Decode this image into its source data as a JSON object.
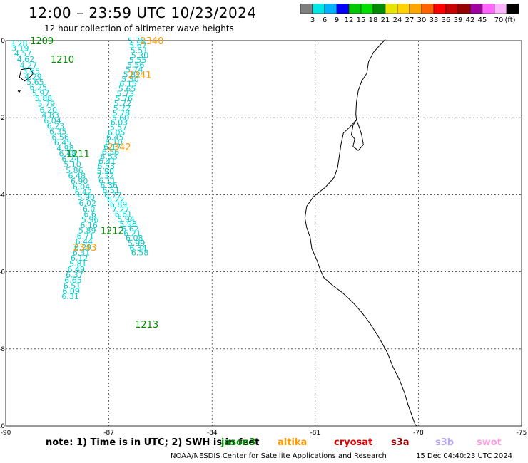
{
  "header": {
    "title": "12:00 – 23:59 UTC 10/23/2024",
    "subtitle": "12 hour collection of altimeter wave heights"
  },
  "colorbar": {
    "colors": [
      "#7f7f7f",
      "#00e5e5",
      "#00b2ff",
      "#0000ff",
      "#00c800",
      "#00e000",
      "#008c00",
      "#e5e500",
      "#ffd200",
      "#ffa500",
      "#ff6400",
      "#ff0000",
      "#c80000",
      "#960000",
      "#a000a0",
      "#ff64ff",
      "#ffb4ff",
      "#000000"
    ],
    "labels": [
      "3",
      "6",
      "9",
      "12",
      "15",
      "18",
      "21",
      "24",
      "27",
      "30",
      "33",
      "36",
      "39",
      "42",
      "45",
      "70"
    ],
    "unit": "(ft)"
  },
  "footer": {
    "note": "note:  1) Time is in UTC; 2) SWH is in feet",
    "credit": "NOAA/NESDIS Center for Satellite Applications and Research",
    "date": "15 Dec 04:40:23 UTC 2024"
  },
  "legend": [
    {
      "name": "jason3",
      "color": "#008c00"
    },
    {
      "name": "altika",
      "color": "#ff9900"
    },
    {
      "name": "cryosat",
      "color": "#e00000"
    },
    {
      "name": "s3a",
      "color": "#a00000"
    },
    {
      "name": "s3b",
      "color": "#b8a8f0"
    },
    {
      "name": "swot",
      "color": "#ff9ee0"
    }
  ],
  "chart_data": {
    "type": "scatter",
    "xlim": [
      -90,
      -75
    ],
    "ylim": [
      -10,
      0
    ],
    "x_ticks": [
      "-90",
      "-87",
      "-84",
      "-81",
      "-78",
      "-75"
    ],
    "y_ticks": [
      "0",
      "-2",
      "-4",
      "-6",
      "-8",
      "-10"
    ],
    "grid": true,
    "value_color": "#00cccc",
    "coastline": [
      [
        -78.96,
        0.03
      ],
      [
        -79.1,
        -0.1
      ],
      [
        -79.3,
        -0.3
      ],
      [
        -79.45,
        -0.55
      ],
      [
        -79.5,
        -0.85
      ],
      [
        -79.65,
        -1.05
      ],
      [
        -79.75,
        -1.3
      ],
      [
        -79.8,
        -1.6
      ],
      [
        -79.82,
        -1.9
      ],
      [
        -79.8,
        -2.05
      ],
      [
        -80.0,
        -2.25
      ],
      [
        -80.18,
        -2.4
      ],
      [
        -80.25,
        -2.7
      ],
      [
        -80.3,
        -3.0
      ],
      [
        -80.35,
        -3.3
      ],
      [
        -80.45,
        -3.55
      ],
      [
        -80.7,
        -3.8
      ],
      [
        -81.05,
        -4.05
      ],
      [
        -81.25,
        -4.3
      ],
      [
        -81.3,
        -4.6
      ],
      [
        -81.25,
        -4.85
      ],
      [
        -81.15,
        -5.1
      ],
      [
        -81.1,
        -5.4
      ],
      [
        -80.95,
        -5.7
      ],
      [
        -80.85,
        -5.95
      ],
      [
        -80.75,
        -6.15
      ],
      [
        -80.5,
        -6.35
      ],
      [
        -80.2,
        -6.55
      ],
      [
        -79.9,
        -6.8
      ],
      [
        -79.65,
        -7.05
      ],
      [
        -79.4,
        -7.35
      ],
      [
        -79.15,
        -7.7
      ],
      [
        -78.9,
        -8.1
      ],
      [
        -78.75,
        -8.45
      ],
      [
        -78.55,
        -8.8
      ],
      [
        -78.4,
        -9.15
      ],
      [
        -78.3,
        -9.45
      ],
      [
        -78.2,
        -9.7
      ],
      [
        -78.1,
        -9.95
      ],
      [
        -78.05,
        -10.0
      ]
    ],
    "gulf": [
      [
        -79.8,
        -2.05
      ],
      [
        -79.9,
        -2.2
      ],
      [
        -79.95,
        -2.45
      ],
      [
        -79.85,
        -2.55
      ],
      [
        -79.9,
        -2.75
      ],
      [
        -79.75,
        -2.85
      ],
      [
        -79.6,
        -2.7
      ],
      [
        -79.65,
        -2.45
      ],
      [
        -79.7,
        -2.3
      ],
      [
        -79.8,
        -2.05
      ]
    ],
    "islands": [
      [
        [
          -89.55,
          -0.75
        ],
        [
          -89.3,
          -0.72
        ],
        [
          -89.2,
          -0.85
        ],
        [
          -89.3,
          -0.95
        ],
        [
          -89.45,
          -1.05
        ],
        [
          -89.6,
          -0.95
        ],
        [
          -89.55,
          -0.75
        ]
      ],
      [
        [
          -89.62,
          -1.28
        ],
        [
          -89.58,
          -1.3
        ],
        [
          -89.6,
          -1.33
        ],
        [
          -89.64,
          -1.31
        ],
        [
          -89.62,
          -1.28
        ]
      ]
    ],
    "tracks": [
      {
        "satellite": "jason3",
        "points": [
          [
            -89.62,
            -0.07,
            "3.28"
          ],
          [
            -89.58,
            -0.19,
            "3.19"
          ],
          [
            -89.5,
            -0.33,
            "4.57"
          ],
          [
            -89.42,
            -0.48,
            "4.62"
          ],
          [
            -89.34,
            -0.64,
            "4.27"
          ],
          [
            -89.26,
            -0.79,
            "3.65"
          ],
          [
            -89.2,
            -0.93,
            "4.29"
          ],
          [
            -89.14,
            -1.07,
            "5.65"
          ],
          [
            -89.05,
            -1.21,
            "6.25"
          ],
          [
            -88.98,
            -1.36,
            "5.97"
          ],
          [
            -88.9,
            -1.5,
            "5.88"
          ],
          [
            -88.82,
            -1.64,
            "5.79"
          ],
          [
            -88.76,
            -1.79,
            "6.20"
          ],
          [
            -88.7,
            -1.93,
            "4.83"
          ],
          [
            -88.64,
            -2.07,
            "6.04"
          ],
          [
            -88.55,
            -2.21,
            "6.23"
          ],
          [
            -88.48,
            -2.36,
            "6.35"
          ],
          [
            -88.41,
            -2.5,
            "6.56"
          ],
          [
            -88.34,
            -2.64,
            "6.45"
          ],
          [
            -88.27,
            -2.79,
            "4.98"
          ],
          [
            -88.2,
            -2.93,
            "6.48"
          ],
          [
            -88.12,
            -3.07,
            "6.24"
          ],
          [
            -88.06,
            -3.21,
            "5.10"
          ],
          [
            -88.0,
            -3.36,
            "5.86"
          ],
          [
            -87.93,
            -3.5,
            "6.48"
          ],
          [
            -87.86,
            -3.64,
            "6.90"
          ],
          [
            -87.8,
            -3.79,
            "6.04"
          ],
          [
            -87.74,
            -3.93,
            "6.42"
          ],
          [
            -87.66,
            -4.07,
            "5.90"
          ],
          [
            -87.62,
            -4.21,
            "6.02"
          ],
          [
            -87.58,
            -4.36,
            "6.0"
          ],
          [
            -87.55,
            -4.5,
            "6.6"
          ],
          [
            -87.55,
            -4.64,
            "5.96"
          ],
          [
            -87.58,
            -4.79,
            "6.16"
          ],
          [
            -87.63,
            -4.93,
            "5.89"
          ],
          [
            -87.68,
            -5.07,
            "6.71"
          ],
          [
            -87.72,
            -5.21,
            "6.44"
          ],
          [
            -87.76,
            -5.36,
            "6.29"
          ],
          [
            -87.8,
            -5.5,
            "6.31"
          ],
          [
            -87.86,
            -5.64,
            "6.12"
          ],
          [
            -87.9,
            -5.79,
            "5.81"
          ],
          [
            -87.95,
            -5.93,
            "6.49"
          ],
          [
            -88.0,
            -6.07,
            "6.37"
          ],
          [
            -88.04,
            -6.21,
            "6.65"
          ],
          [
            -88.07,
            -6.36,
            "6.51"
          ],
          [
            -88.1,
            -6.5,
            "6.09"
          ],
          [
            -88.12,
            -6.64,
            "6.31"
          ]
        ],
        "labels": [
          [
            -88.95,
            -0.0,
            "1209"
          ],
          [
            -88.35,
            -0.48,
            "1210"
          ],
          [
            -87.9,
            -2.93,
            "1211"
          ],
          [
            -86.9,
            -4.93,
            "1212"
          ],
          [
            -85.9,
            -7.36,
            "1213"
          ]
        ]
      },
      {
        "satellite": "altika",
        "points": [
          [
            -86.2,
            -0.0,
            "5.76"
          ],
          [
            -86.15,
            -0.12,
            "5.67"
          ],
          [
            -86.12,
            -0.25,
            "5.51"
          ],
          [
            -86.1,
            -0.38,
            "5.30"
          ],
          [
            -86.16,
            -0.5,
            "5.55"
          ],
          [
            -86.22,
            -0.63,
            "5.56"
          ],
          [
            -86.26,
            -0.75,
            "5.74"
          ],
          [
            -86.33,
            -0.88,
            "5.82"
          ],
          [
            -86.38,
            -1.0,
            "5.50"
          ],
          [
            -86.44,
            -1.12,
            "6.15"
          ],
          [
            -86.47,
            -1.25,
            "5.65"
          ],
          [
            -86.52,
            -1.38,
            "5.73"
          ],
          [
            -86.56,
            -1.5,
            "5.76"
          ],
          [
            -86.6,
            -1.63,
            "5.72"
          ],
          [
            -86.62,
            -1.75,
            "5.72"
          ],
          [
            -86.64,
            -1.88,
            "5.78"
          ],
          [
            -86.66,
            -2.0,
            "5.60"
          ],
          [
            -86.7,
            -2.12,
            "6.03"
          ],
          [
            -86.72,
            -2.25,
            "5.57"
          ],
          [
            -86.78,
            -2.38,
            "6.05"
          ],
          [
            -86.82,
            -2.5,
            "6.45"
          ],
          [
            -86.86,
            -2.63,
            "6.10"
          ],
          [
            -86.9,
            -2.75,
            "6.17"
          ],
          [
            -86.95,
            -2.88,
            "6.56"
          ],
          [
            -87.0,
            -3.0,
            "6.53"
          ],
          [
            -87.05,
            -3.12,
            "6.41"
          ],
          [
            -87.08,
            -3.25,
            "6.53"
          ],
          [
            -87.1,
            -3.38,
            "5.90"
          ],
          [
            -87.1,
            -3.5,
            "7.32"
          ],
          [
            -87.05,
            -3.63,
            "6.11"
          ],
          [
            -87.0,
            -3.75,
            "6.36"
          ],
          [
            -86.94,
            -3.88,
            "6.51"
          ],
          [
            -86.88,
            -4.0,
            "6.77"
          ],
          [
            -86.8,
            -4.12,
            "6.22"
          ],
          [
            -86.72,
            -4.25,
            "6.89"
          ],
          [
            -86.66,
            -4.38,
            "7.27"
          ],
          [
            -86.58,
            -4.5,
            "6.61"
          ],
          [
            -86.5,
            -4.63,
            "5.94"
          ],
          [
            -86.44,
            -4.75,
            "5.98"
          ],
          [
            -86.38,
            -4.88,
            "6.62"
          ],
          [
            -86.32,
            -5.0,
            "6.21"
          ],
          [
            -86.26,
            -5.12,
            "6.08"
          ],
          [
            -86.2,
            -5.25,
            "5.99"
          ],
          [
            -86.15,
            -5.38,
            "6.34"
          ],
          [
            -86.1,
            -5.5,
            "6.58"
          ]
        ],
        "labels": [
          [
            -85.75,
            -0.0,
            "2340"
          ],
          [
            -86.1,
            -0.88,
            "2341"
          ],
          [
            -86.7,
            -2.75,
            "2342"
          ],
          [
            -87.7,
            -5.36,
            "2343"
          ]
        ]
      }
    ]
  }
}
